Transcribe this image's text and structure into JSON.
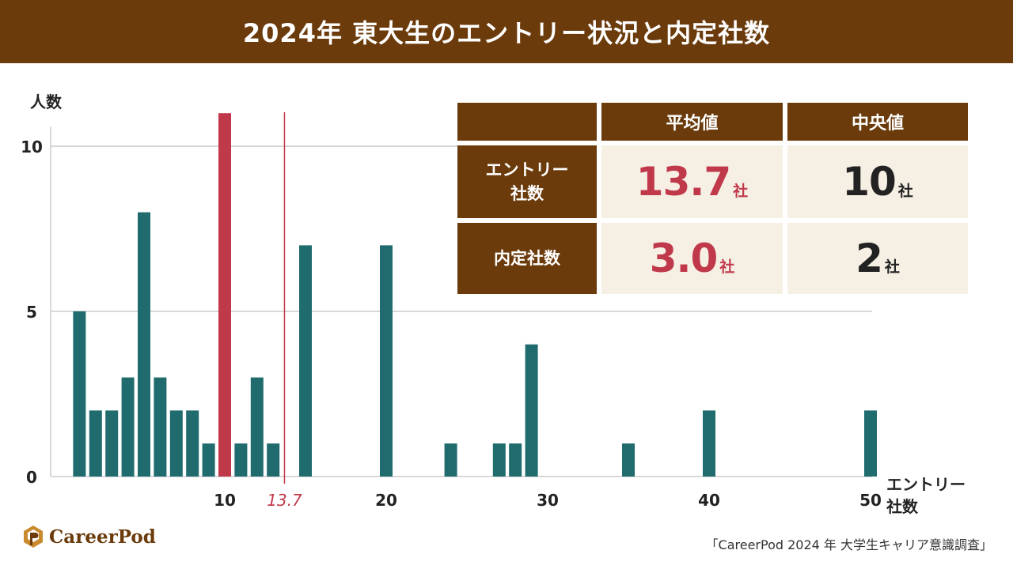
{
  "title": "2024年 東大生のエントリー状況と内定社数",
  "colors": {
    "header": "#6b3b0c",
    "bar": "#1f6b6e",
    "highlight": "#c0394b",
    "cell_bg": "#f6efe4",
    "grid": "#cccccc"
  },
  "chart_data": {
    "type": "bar",
    "title": "",
    "ylabel": "人数",
    "xlabel": "エントリー社数",
    "ylim": [
      0,
      10.5
    ],
    "xlim": [
      0,
      52
    ],
    "yticks": [
      0,
      5,
      10
    ],
    "xticks": [
      10,
      20,
      30,
      40,
      50
    ],
    "x": [
      1,
      2,
      3,
      4,
      5,
      6,
      7,
      8,
      9,
      10,
      11,
      12,
      13,
      15,
      20,
      24,
      27,
      28,
      29,
      35,
      40,
      50
    ],
    "values": [
      5,
      2,
      2,
      3,
      8,
      3,
      2,
      2,
      1,
      11,
      1,
      3,
      1,
      7,
      7,
      1,
      1,
      1,
      4,
      1,
      2,
      2
    ],
    "highlight_x": 10,
    "mean_line": {
      "value": 13.7,
      "label": "13.7"
    }
  },
  "stats_table": {
    "headers": [
      "平均値",
      "中央値"
    ],
    "rows": [
      {
        "label": "エントリー社数",
        "mean": "13.7",
        "median": "10",
        "unit": "社"
      },
      {
        "label": "内定社数",
        "mean": "3.0",
        "median": "2",
        "unit": "社"
      }
    ]
  },
  "footer": {
    "logo": "CareerPod",
    "source": "「CareerPod 2024 年 大学生キャリア意識調査」"
  }
}
